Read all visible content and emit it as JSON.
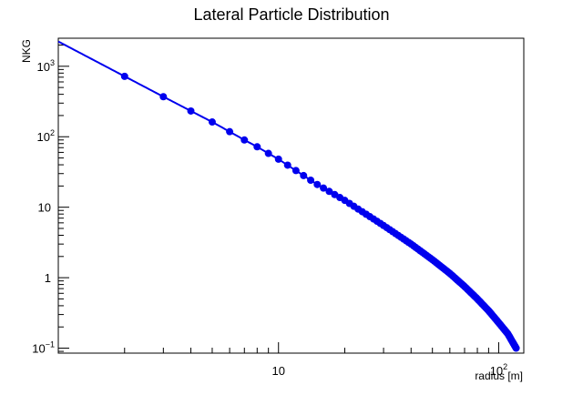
{
  "chart_data": {
    "type": "line",
    "title": "Lateral Particle Distribution",
    "xlabel": "radius [m]",
    "ylabel": "NKG",
    "xscale": "log",
    "yscale": "log",
    "xlim": [
      1.0,
      130
    ],
    "ylim": [
      0.085,
      2500
    ],
    "grid": false,
    "legend": "none",
    "x_ticks": [
      {
        "value": 10,
        "label": "10",
        "sup": ""
      },
      {
        "value": 100,
        "label": "10",
        "sup": "2"
      }
    ],
    "y_ticks": [
      {
        "value": 0.1,
        "label": "10",
        "sup": "−1"
      },
      {
        "value": 1,
        "label": "1",
        "sup": ""
      },
      {
        "value": 10,
        "label": "10",
        "sup": ""
      },
      {
        "value": 100,
        "label": "10",
        "sup": "2"
      },
      {
        "value": 1000,
        "label": "10",
        "sup": "3"
      }
    ],
    "colors": {
      "series": "#0000ee",
      "axes": "#000000",
      "background": "#ffffff"
    },
    "series": [
      {
        "x_start": 2,
        "x_end": 120,
        "x_step": 1,
        "curve_x_start": 1.0,
        "values": [
          {
            "x": 2,
            "y": 720
          },
          {
            "x": 3,
            "y": 370
          },
          {
            "x": 4,
            "y": 232
          },
          {
            "x": 5,
            "y": 162
          },
          {
            "x": 6,
            "y": 118
          },
          {
            "x": 7,
            "y": 90
          },
          {
            "x": 8,
            "y": 72
          },
          {
            "x": 9,
            "y": 58
          },
          {
            "x": 10,
            "y": 48
          },
          {
            "x": 15,
            "y": 21
          },
          {
            "x": 20,
            "y": 12.5
          },
          {
            "x": 30,
            "y": 5.5
          },
          {
            "x": 40,
            "y": 3.0
          },
          {
            "x": 50,
            "y": 1.8
          },
          {
            "x": 60,
            "y": 1.15
          },
          {
            "x": 70,
            "y": 0.75
          },
          {
            "x": 80,
            "y": 0.5
          },
          {
            "x": 90,
            "y": 0.34
          },
          {
            "x": 100,
            "y": 0.23
          },
          {
            "x": 110,
            "y": 0.16
          },
          {
            "x": 120,
            "y": 0.1
          }
        ]
      }
    ]
  }
}
